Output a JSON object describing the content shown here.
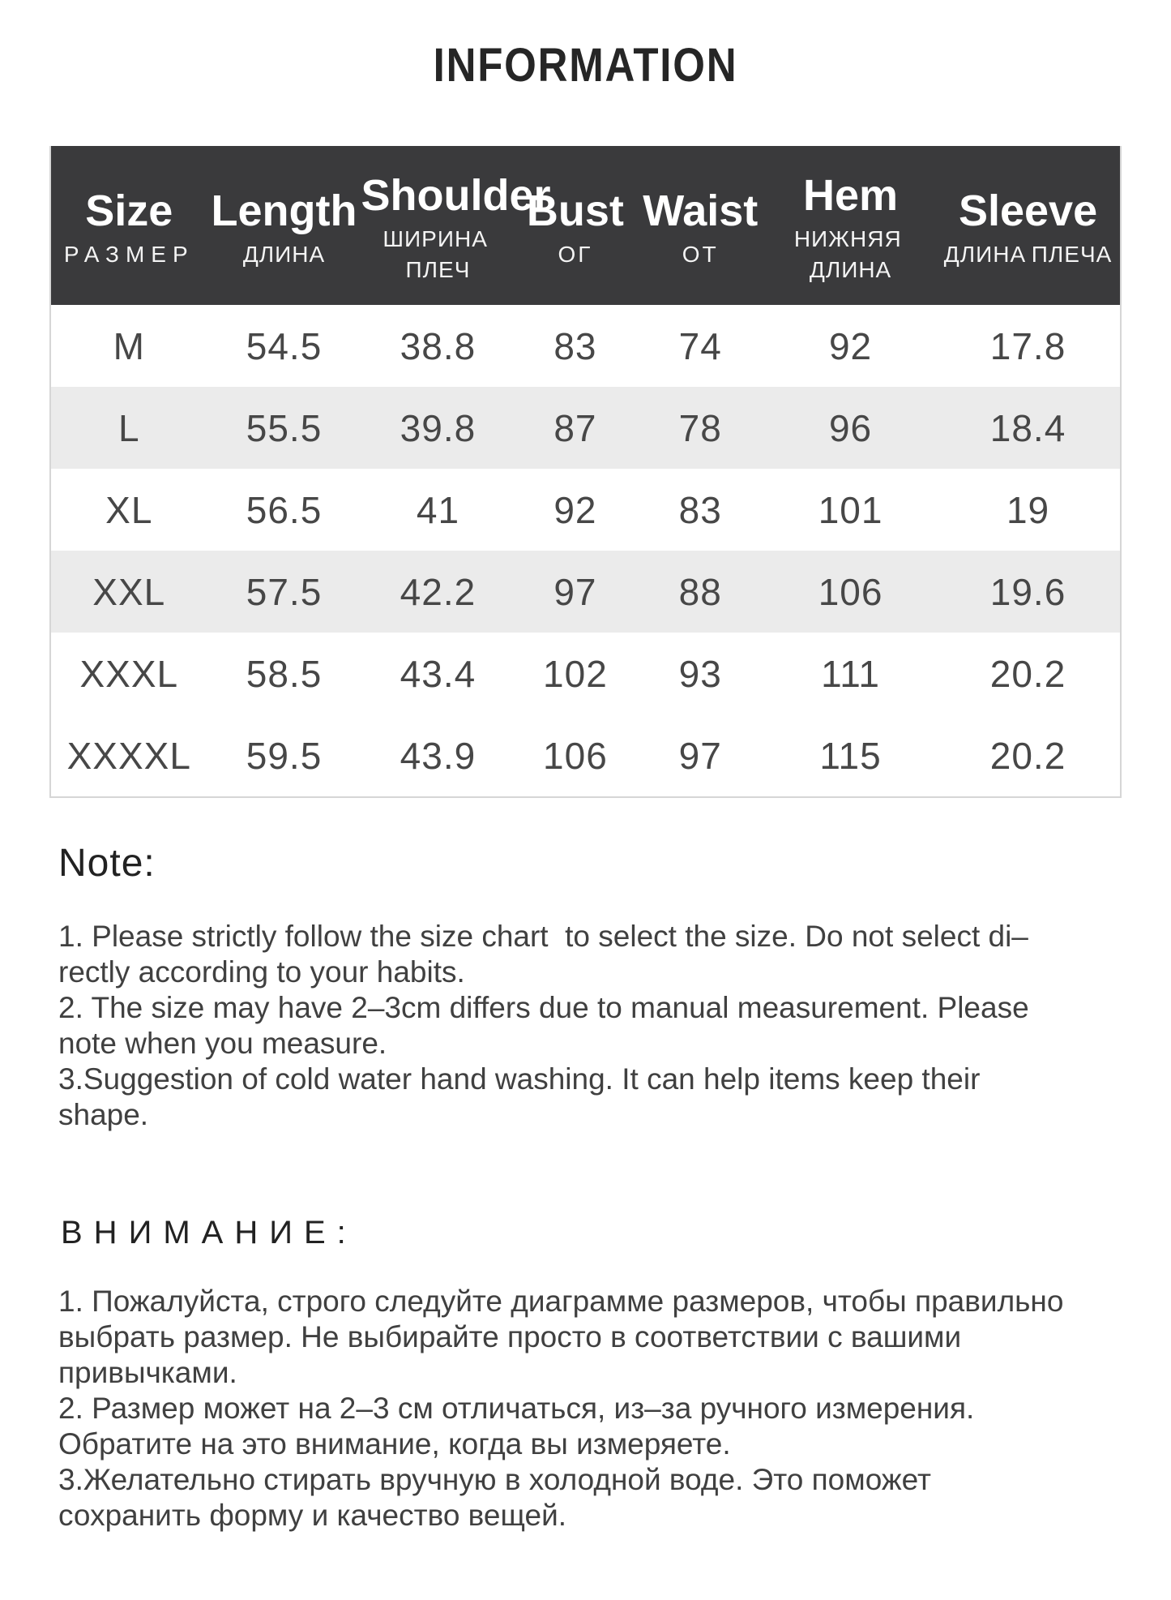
{
  "page": {
    "title": "INFORMATION"
  },
  "colors": {
    "header_bg": "#3a3a3c",
    "header_text": "#ffffff",
    "row_shaded": "#ebebeb",
    "table_border": "#d6d6d6",
    "body_text": "#404040"
  },
  "table": {
    "columns": [
      {
        "en": "Size",
        "ru": "РАЗМЕР"
      },
      {
        "en": "Length",
        "ru": "ДЛИНА"
      },
      {
        "en": "Shoulder",
        "ru": "ШИРИНА ПЛЕЧ"
      },
      {
        "en": "Bust",
        "ru": "ОГ"
      },
      {
        "en": "Waist",
        "ru": "ОТ"
      },
      {
        "en": "Hem",
        "ru": "НИЖНЯЯ ДЛИНА"
      },
      {
        "en": "Sleeve",
        "ru": "ДЛИНА ПЛЕЧА"
      }
    ],
    "rows": [
      {
        "shaded": false,
        "cells": [
          "M",
          "54.5",
          "38.8",
          "83",
          "74",
          "92",
          "17.8"
        ]
      },
      {
        "shaded": true,
        "cells": [
          "L",
          "55.5",
          "39.8",
          "87",
          "78",
          "96",
          "18.4"
        ]
      },
      {
        "shaded": false,
        "cells": [
          "XL",
          "56.5",
          "41",
          "92",
          "83",
          "101",
          "19"
        ]
      },
      {
        "shaded": true,
        "cells": [
          "XXL",
          "57.5",
          "42.2",
          "97",
          "88",
          "106",
          "19.6"
        ]
      },
      {
        "shaded": false,
        "cells": [
          "XXXL",
          "58.5",
          "43.4",
          "102",
          "93",
          "111",
          "20.2"
        ]
      },
      {
        "shaded": false,
        "cells": [
          "XXXXL",
          "59.5",
          "43.9",
          "106",
          "97",
          "115",
          "20.2"
        ]
      }
    ]
  },
  "notes_en": {
    "heading": "Note:",
    "lines": [
      "1. Please strictly follow the size chart  to select the size. Do not select di–",
      "rectly according to your habits.",
      "2. The size may have 2–3cm differs due to manual measurement. Please",
      "note when you measure.",
      "3.Suggestion of cold water hand washing. It can help items keep their",
      "shape."
    ]
  },
  "notes_ru": {
    "heading": "ВНИМАНИЕ:",
    "lines": [
      "1. Пожалуйста, строго следуйте диаграмме размеров, чтобы правильно",
      "выбрать размер. Не выбирайте просто в соответствии с вашими",
      "привычками.",
      "2. Размер может на 2–3 см отличаться, из–за ручного измерения.",
      "Обратите на это внимание, когда вы измеряете.",
      "3.Желательно стирать вручную в холодной воде. Это поможет",
      "сохранить форму и качество вещей."
    ]
  }
}
